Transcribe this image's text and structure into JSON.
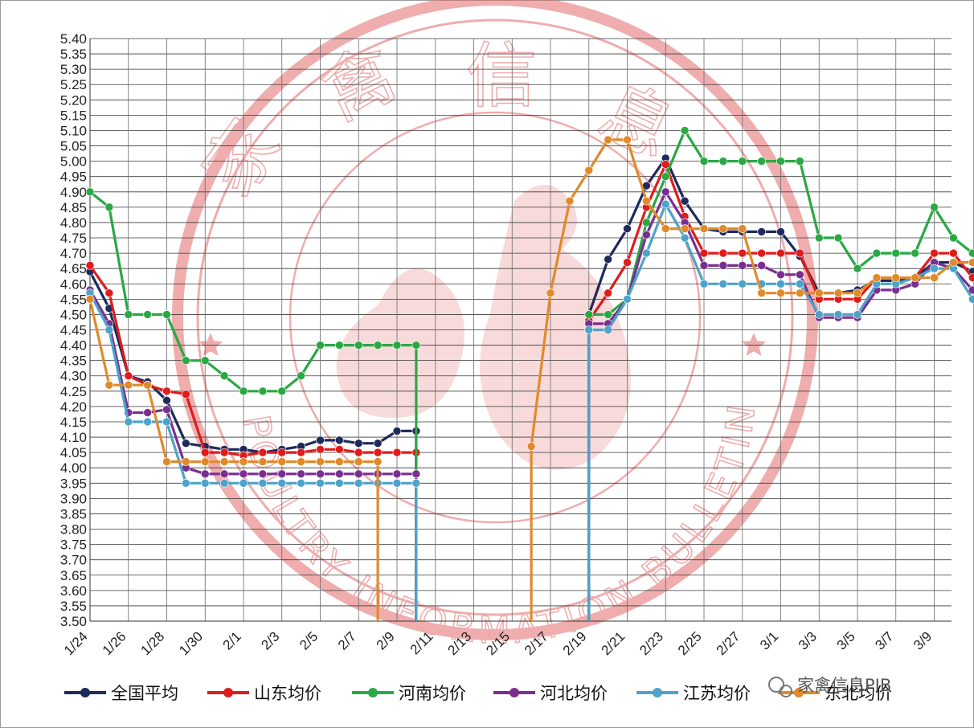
{
  "chart_data": {
    "type": "line",
    "title": "",
    "xlabel": "",
    "ylabel": "",
    "ylim": [
      3.5,
      5.4
    ],
    "ytick_step": 0.05,
    "grid": true,
    "legend": "bottom",
    "x_ticks": [
      "1/24",
      "1/26",
      "1/28",
      "1/30",
      "2/1",
      "2/3",
      "2/5",
      "2/7",
      "2/9",
      "2/11",
      "2/13",
      "2/15",
      "2/17",
      "2/19",
      "2/21",
      "2/23",
      "2/25",
      "2/27",
      "3/1",
      "3/3",
      "3/5",
      "3/7",
      "3/9"
    ],
    "watermark": {
      "text": "家禽信息",
      "english": "POULTRY INFORMATION BULLETIN",
      "color": "#e36b6b"
    },
    "source_label": "家禽信息PIB",
    "series": [
      {
        "name": "全国平均",
        "color": "#1f2a5c",
        "values": [
          4.64,
          4.52,
          4.3,
          4.28,
          4.22,
          4.08,
          4.07,
          4.06,
          4.06,
          4.05,
          4.06,
          4.07,
          4.09,
          4.09,
          4.08,
          4.08,
          4.12,
          4.12,
          null,
          null,
          null,
          null,
          null,
          null,
          null,
          null,
          4.5,
          4.68,
          4.78,
          4.92,
          5.01,
          4.87,
          4.78,
          4.77,
          4.77,
          4.77,
          4.77,
          4.69,
          4.57,
          4.57,
          4.58,
          4.61,
          4.61,
          4.62,
          4.67,
          4.67,
          4.64
        ]
      },
      {
        "name": "山东均价",
        "color": "#e01b1b",
        "values": [
          4.66,
          4.57,
          4.3,
          4.27,
          4.25,
          4.24,
          4.05,
          4.05,
          4.04,
          4.05,
          4.05,
          4.05,
          4.06,
          4.06,
          4.05,
          4.05,
          4.05,
          4.05,
          null,
          null,
          null,
          null,
          null,
          null,
          null,
          null,
          4.48,
          4.57,
          4.67,
          4.85,
          4.99,
          4.82,
          4.7,
          4.7,
          4.7,
          4.7,
          4.7,
          4.7,
          4.55,
          4.55,
          4.55,
          4.62,
          4.62,
          4.62,
          4.7,
          4.7,
          4.62
        ]
      },
      {
        "name": "河南均价",
        "color": "#2aa844",
        "values": [
          4.9,
          4.85,
          4.5,
          4.5,
          4.5,
          4.35,
          4.35,
          4.3,
          4.25,
          4.25,
          4.25,
          4.3,
          4.4,
          4.4,
          4.4,
          4.4,
          4.4,
          4.4,
          null,
          null,
          null,
          null,
          null,
          null,
          null,
          null,
          4.5,
          4.5,
          4.55,
          4.8,
          4.95,
          5.1,
          5.0,
          5.0,
          5.0,
          5.0,
          5.0,
          5.0,
          4.75,
          4.75,
          4.65,
          4.7,
          4.7,
          4.7,
          4.85,
          4.75,
          4.7
        ]
      },
      {
        "name": "河北均价",
        "color": "#7a2f8f",
        "values": [
          4.58,
          4.47,
          4.18,
          4.18,
          4.19,
          4.0,
          3.98,
          3.98,
          3.98,
          3.98,
          3.98,
          3.98,
          3.98,
          3.98,
          3.98,
          3.98,
          3.98,
          3.98,
          null,
          null,
          null,
          null,
          null,
          null,
          null,
          null,
          4.47,
          4.47,
          4.55,
          4.76,
          4.9,
          4.8,
          4.66,
          4.66,
          4.66,
          4.66,
          4.63,
          4.63,
          4.49,
          4.49,
          4.49,
          4.58,
          4.58,
          4.6,
          4.67,
          4.65,
          4.58
        ]
      },
      {
        "name": "江苏均价",
        "color": "#4da3c9",
        "values": [
          4.57,
          4.45,
          4.15,
          4.15,
          4.15,
          3.95,
          3.95,
          3.95,
          3.95,
          3.95,
          3.95,
          3.95,
          3.95,
          3.95,
          3.95,
          3.95,
          3.95,
          3.95,
          null,
          null,
          null,
          null,
          null,
          null,
          null,
          null,
          4.45,
          4.45,
          4.55,
          4.7,
          4.86,
          4.75,
          4.6,
          4.6,
          4.6,
          4.6,
          4.6,
          4.6,
          4.5,
          4.5,
          4.5,
          4.6,
          4.6,
          4.62,
          4.65,
          4.65,
          4.55
        ]
      },
      {
        "name": "东北均价",
        "color": "#e08a2c",
        "values": [
          4.55,
          4.27,
          4.27,
          4.27,
          4.02,
          4.02,
          4.02,
          4.02,
          4.02,
          4.02,
          4.02,
          4.02,
          4.02,
          4.02,
          4.02,
          4.02,
          null,
          null,
          null,
          null,
          null,
          null,
          null,
          4.07,
          4.57,
          4.87,
          4.97,
          5.07,
          5.07,
          4.87,
          4.78,
          4.78,
          4.78,
          4.78,
          4.78,
          4.57,
          4.57,
          4.57,
          4.57,
          4.57,
          4.57,
          4.62,
          4.62,
          4.62,
          4.62,
          4.67,
          4.67
        ]
      }
    ]
  }
}
